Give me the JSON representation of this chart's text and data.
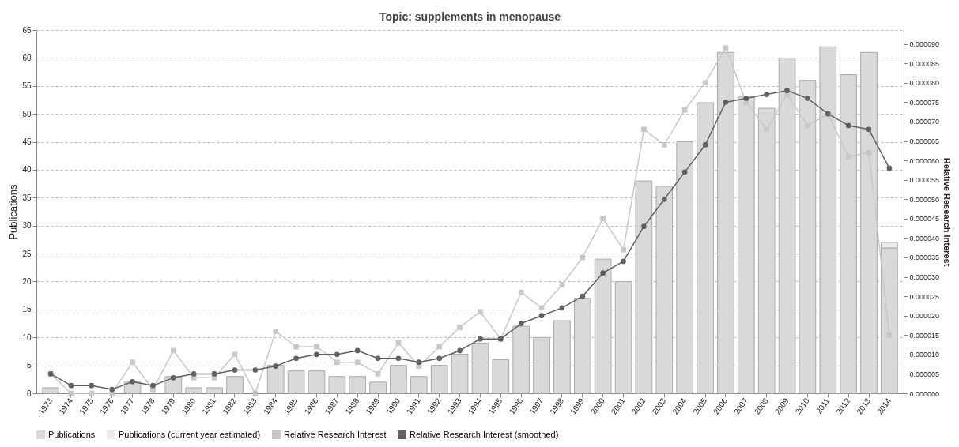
{
  "chart_data": {
    "type": "bar",
    "title": "Topic: supplements in menopause",
    "ylabel": "Publications",
    "y2label": "Relative Research Interest",
    "categories": [
      "1973",
      "1974",
      "1975",
      "1976",
      "1977",
      "1978",
      "1979",
      "1980",
      "1981",
      "1982",
      "1983",
      "1984",
      "1985",
      "1986",
      "1987",
      "1988",
      "1989",
      "1990",
      "1991",
      "1992",
      "1993",
      "1994",
      "1995",
      "1996",
      "1997",
      "1998",
      "1999",
      "2000",
      "2001",
      "2002",
      "2003",
      "2004",
      "2005",
      "2006",
      "2007",
      "2008",
      "2009",
      "2010",
      "2011",
      "2012",
      "2013",
      "2014"
    ],
    "stacked": true,
    "series": [
      {
        "name": "Publications",
        "color": "#d9d9d9",
        "values": [
          1,
          0,
          0,
          0,
          2,
          0,
          3,
          1,
          1,
          3,
          0,
          5,
          4,
          4,
          3,
          3,
          2,
          5,
          3,
          5,
          7,
          9,
          6,
          12,
          10,
          13,
          17,
          24,
          20,
          38,
          37,
          45,
          52,
          61,
          53,
          51,
          60,
          56,
          62,
          57,
          61,
          26
        ]
      },
      {
        "name": "Publications (current year estimated)",
        "color": "#ebebeb",
        "values": [
          null,
          null,
          null,
          null,
          null,
          null,
          null,
          null,
          null,
          null,
          null,
          null,
          null,
          null,
          null,
          null,
          null,
          null,
          null,
          null,
          null,
          null,
          null,
          null,
          null,
          null,
          null,
          null,
          null,
          null,
          null,
          null,
          null,
          null,
          null,
          null,
          null,
          null,
          null,
          null,
          null,
          1
        ]
      },
      {
        "name": "Relative Research Interest",
        "type": "line",
        "axis": "y2",
        "marker": "square",
        "color": "#c8c8c8",
        "values": [
          5e-06,
          0,
          0,
          0,
          8e-06,
          1e-06,
          1.1e-05,
          4e-06,
          4e-06,
          1e-05,
          0,
          1.6e-05,
          1.2e-05,
          1.2e-05,
          8e-06,
          8e-06,
          5e-06,
          1.3e-05,
          7e-06,
          1.2e-05,
          1.7e-05,
          2.1e-05,
          1.4e-05,
          2.6e-05,
          2.2e-05,
          2.8e-05,
          3.5e-05,
          4.5e-05,
          3.7e-05,
          6.8e-05,
          6.4e-05,
          7.3e-05,
          8e-05,
          8.9e-05,
          7.5e-05,
          6.8e-05,
          7.7e-05,
          6.9e-05,
          7.2e-05,
          6.1e-05,
          6.2e-05,
          1.5e-05
        ]
      },
      {
        "name": "Relative Research Interest (smoothed)",
        "type": "line",
        "axis": "y2",
        "marker": "circle",
        "color": "#606060",
        "values": [
          5e-06,
          2e-06,
          2e-06,
          1e-06,
          3e-06,
          2e-06,
          4e-06,
          5e-06,
          5e-06,
          6e-06,
          6e-06,
          7e-06,
          9e-06,
          1e-05,
          1e-05,
          1.1e-05,
          9e-06,
          9e-06,
          8e-06,
          9e-06,
          1.1e-05,
          1.4e-05,
          1.4e-05,
          1.8e-05,
          2e-05,
          2.2e-05,
          2.5e-05,
          3.1e-05,
          3.4e-05,
          4.3e-05,
          5e-05,
          5.7e-05,
          6.4e-05,
          7.5e-05,
          7.6e-05,
          7.7e-05,
          7.8e-05,
          7.6e-05,
          7.2e-05,
          6.9e-05,
          6.8e-05,
          5.8e-05
        ]
      }
    ],
    "ylim": [
      0,
      65
    ],
    "yticks": [
      0,
      5,
      10,
      15,
      20,
      25,
      30,
      35,
      40,
      45,
      50,
      55,
      60,
      65
    ],
    "y2lim": [
      0,
      9.36e-05
    ],
    "y2ticks": [
      {
        "value": 0,
        "label": "0.000000"
      },
      {
        "value": 5e-06,
        "label": "0.000005"
      },
      {
        "value": 1e-05,
        "label": "0.000010"
      },
      {
        "value": 1.5e-05,
        "label": "0.000015"
      },
      {
        "value": 2e-05,
        "label": "0.000020"
      },
      {
        "value": 2.5e-05,
        "label": "0.000025"
      },
      {
        "value": 3e-05,
        "label": "0.000030"
      },
      {
        "value": 3.5e-05,
        "label": "0.000035"
      },
      {
        "value": 4e-05,
        "label": "0.000040"
      },
      {
        "value": 4.5e-05,
        "label": "0.000045"
      },
      {
        "value": 5e-05,
        "label": "0.000050"
      },
      {
        "value": 5.5e-05,
        "label": "0.000055"
      },
      {
        "value": 6e-05,
        "label": "0.000060"
      },
      {
        "value": 6.5e-05,
        "label": "0.000065"
      },
      {
        "value": 7e-05,
        "label": "0.000070"
      },
      {
        "value": 7.5e-05,
        "label": "0.000075"
      },
      {
        "value": 8e-05,
        "label": "0.000080"
      },
      {
        "value": 8.5e-05,
        "label": "0.000085"
      },
      {
        "value": 9e-05,
        "label": "0.000090"
      }
    ],
    "grid": "y",
    "legend": "bottom"
  }
}
